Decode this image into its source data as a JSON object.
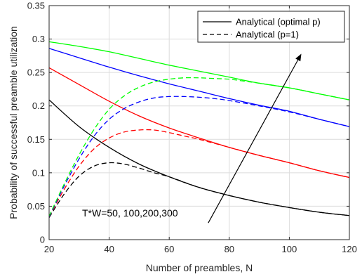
{
  "chart_data": {
    "type": "line",
    "xlabel": "Number of preambles, N",
    "ylabel": "Probability of successful preamble utilization",
    "xlim": [
      20,
      120
    ],
    "ylim": [
      0,
      0.35
    ],
    "xticks": [
      20,
      40,
      60,
      80,
      100,
      120
    ],
    "yticks": [
      0,
      0.05,
      0.1,
      0.15,
      0.2,
      0.25,
      0.3,
      0.35
    ],
    "xtick_labels": [
      "20",
      "40",
      "60",
      "80",
      "100",
      "120"
    ],
    "ytick_labels": [
      "0",
      "0.05",
      "0.1",
      "0.15",
      "0.2",
      "0.25",
      "0.3",
      "0.35"
    ],
    "grid": true,
    "legend": {
      "placement": "top-right",
      "entries": [
        {
          "label": "Analytical (optimal p)",
          "style": "solid"
        },
        {
          "label": "Analytical (p=1)",
          "style": "dashed"
        }
      ]
    },
    "annotation": {
      "text": "T*W=50, 100,200,300",
      "arrow_from": [
        73,
        0.025
      ],
      "arrow_to": [
        104,
        0.278
      ]
    },
    "series": [
      {
        "color": "#000000",
        "style": "solid",
        "x": [
          20,
          30,
          40,
          50,
          60,
          70,
          80,
          90,
          100,
          110,
          120
        ],
        "y": [
          0.209,
          0.169,
          0.138,
          0.113,
          0.094,
          0.078,
          0.066,
          0.056,
          0.048,
          0.041,
          0.036
        ]
      },
      {
        "color": "#ff0000",
        "style": "solid",
        "x": [
          20,
          30,
          40,
          50,
          60,
          70,
          80,
          90,
          100,
          110,
          120
        ],
        "y": [
          0.257,
          0.232,
          0.207,
          0.185,
          0.167,
          0.152,
          0.138,
          0.126,
          0.115,
          0.103,
          0.093
        ]
      },
      {
        "color": "#0000ff",
        "style": "solid",
        "x": [
          20,
          30,
          40,
          50,
          60,
          70,
          80,
          90,
          100,
          110,
          120
        ],
        "y": [
          0.286,
          0.272,
          0.258,
          0.245,
          0.233,
          0.222,
          0.211,
          0.201,
          0.192,
          0.18,
          0.169
        ]
      },
      {
        "color": "#00ff00",
        "style": "solid",
        "x": [
          20,
          30,
          40,
          50,
          60,
          70,
          80,
          90,
          100,
          110,
          120
        ],
        "y": [
          0.296,
          0.289,
          0.281,
          0.271,
          0.261,
          0.252,
          0.243,
          0.234,
          0.227,
          0.218,
          0.209
        ]
      },
      {
        "color": "#000000",
        "style": "dashed",
        "x": [
          20,
          25,
          30,
          35,
          40,
          45,
          50,
          55,
          60,
          70,
          80,
          90,
          100,
          110,
          120
        ],
        "y": [
          0.033,
          0.068,
          0.095,
          0.11,
          0.115,
          0.113,
          0.107,
          0.1,
          0.094,
          0.078,
          0.066,
          0.056,
          0.048,
          0.041,
          0.036
        ]
      },
      {
        "color": "#ff0000",
        "style": "dashed",
        "x": [
          20,
          25,
          30,
          35,
          40,
          45,
          50,
          55,
          60,
          65,
          70,
          80,
          90,
          100,
          110,
          120
        ],
        "y": [
          0.034,
          0.075,
          0.11,
          0.136,
          0.152,
          0.161,
          0.164,
          0.164,
          0.16,
          0.155,
          0.15,
          0.138,
          0.126,
          0.115,
          0.103,
          0.093
        ]
      },
      {
        "color": "#0000ff",
        "style": "dashed",
        "x": [
          20,
          25,
          30,
          35,
          40,
          45,
          50,
          55,
          60,
          65,
          70,
          75,
          80,
          90,
          100,
          110,
          120
        ],
        "y": [
          0.034,
          0.08,
          0.121,
          0.155,
          0.18,
          0.196,
          0.206,
          0.212,
          0.214,
          0.214,
          0.213,
          0.211,
          0.208,
          0.2,
          0.191,
          0.18,
          0.169
        ]
      },
      {
        "color": "#00ff00",
        "style": "dashed",
        "x": [
          20,
          25,
          30,
          35,
          40,
          45,
          50,
          55,
          60,
          65,
          70,
          75,
          80,
          85,
          90,
          100,
          110,
          120
        ],
        "y": [
          0.035,
          0.083,
          0.127,
          0.165,
          0.195,
          0.215,
          0.228,
          0.236,
          0.24,
          0.242,
          0.242,
          0.241,
          0.24,
          0.237,
          0.234,
          0.227,
          0.218,
          0.209
        ]
      }
    ]
  }
}
